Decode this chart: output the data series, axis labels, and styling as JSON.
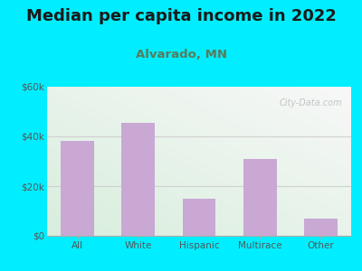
{
  "title": "Median per capita income in 2022",
  "subtitle": "Alvarado, MN",
  "categories": [
    "All",
    "White",
    "Hispanic",
    "Multirace",
    "Other"
  ],
  "values": [
    38000,
    45500,
    15000,
    31000,
    7000
  ],
  "bar_color": "#c9a8d4",
  "title_fontsize": 13,
  "subtitle_fontsize": 9.5,
  "subtitle_color": "#5a7a5a",
  "title_color": "#1a1a1a",
  "background_color": "#00eeff",
  "plot_bg_top_right": "#f5f5f5",
  "plot_bg_bottom_left": "#d8eedd",
  "ymax": 60000,
  "yticks": [
    0,
    20000,
    40000,
    60000
  ],
  "ytick_labels": [
    "$0",
    "$20k",
    "$40k",
    "$60k"
  ],
  "watermark": "City-Data.com",
  "watermark_color": "#bbbbbb",
  "grid_color": "#d0d0d0"
}
